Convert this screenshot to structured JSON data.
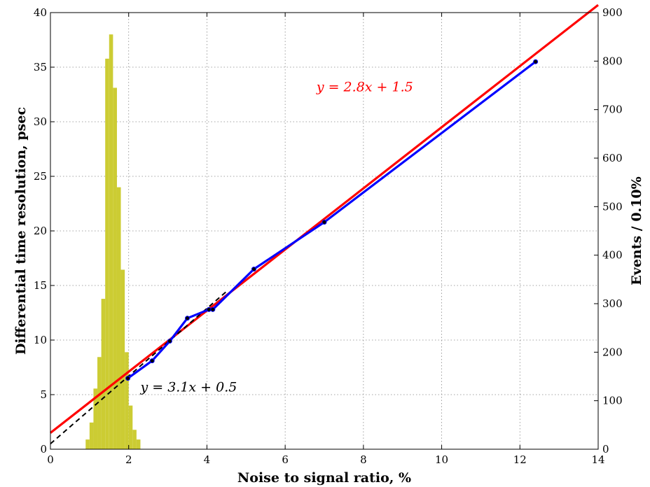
{
  "chart_data": {
    "type": "line",
    "title": "",
    "xlabel": "Noise to signal ratio, %",
    "ylabel_left": "Differential time resolution, psec",
    "ylabel_right": "Events / 0.10%",
    "xlim": [
      0,
      14
    ],
    "ylim_left": [
      0,
      40
    ],
    "ylim_right": [
      0,
      900
    ],
    "x_ticks": [
      "0",
      "2",
      "4",
      "6",
      "8",
      "10",
      "12",
      "14"
    ],
    "y_left_ticks": [
      "0",
      "5",
      "10",
      "15",
      "20",
      "25",
      "30",
      "35",
      "40"
    ],
    "y_right_ticks": [
      "0",
      "100",
      "200",
      "300",
      "400",
      "500",
      "600",
      "700",
      "800",
      "900"
    ],
    "grid": true,
    "series": [
      {
        "kind": "line",
        "axis": "left",
        "color": "#0000ff",
        "x": [
          1.98,
          2.6,
          3.05,
          3.5,
          4.05,
          4.15,
          5.2,
          7.0,
          12.4
        ],
        "y": [
          6.5,
          8.1,
          9.9,
          12.0,
          12.8,
          12.8,
          16.5,
          20.8,
          35.5
        ]
      },
      {
        "kind": "fit",
        "axis": "left",
        "color": "#ff0000",
        "x": [
          0,
          14
        ],
        "y": [
          1.5,
          40.7
        ],
        "label": "y = 2.8x + 1.5",
        "label_x": 6.8,
        "label_y": 32.8
      },
      {
        "kind": "fit-dashed",
        "axis": "left",
        "color": "#000000",
        "x": [
          0,
          4.5
        ],
        "y": [
          0.5,
          14.45
        ],
        "label": "y = 3.1x + 0.5",
        "label_x": 2.3,
        "label_y": 5.3
      },
      {
        "kind": "histogram",
        "axis": "right",
        "color": "#cccc33",
        "bin_width": 0.1,
        "bin_start": [
          0.9,
          1.0,
          1.1,
          1.2,
          1.3,
          1.4,
          1.5,
          1.6,
          1.7,
          1.8,
          1.9,
          2.0,
          2.1,
          2.2
        ],
        "counts": [
          20,
          55,
          125,
          190,
          310,
          805,
          855,
          745,
          540,
          370,
          200,
          90,
          40,
          20
        ]
      }
    ]
  }
}
